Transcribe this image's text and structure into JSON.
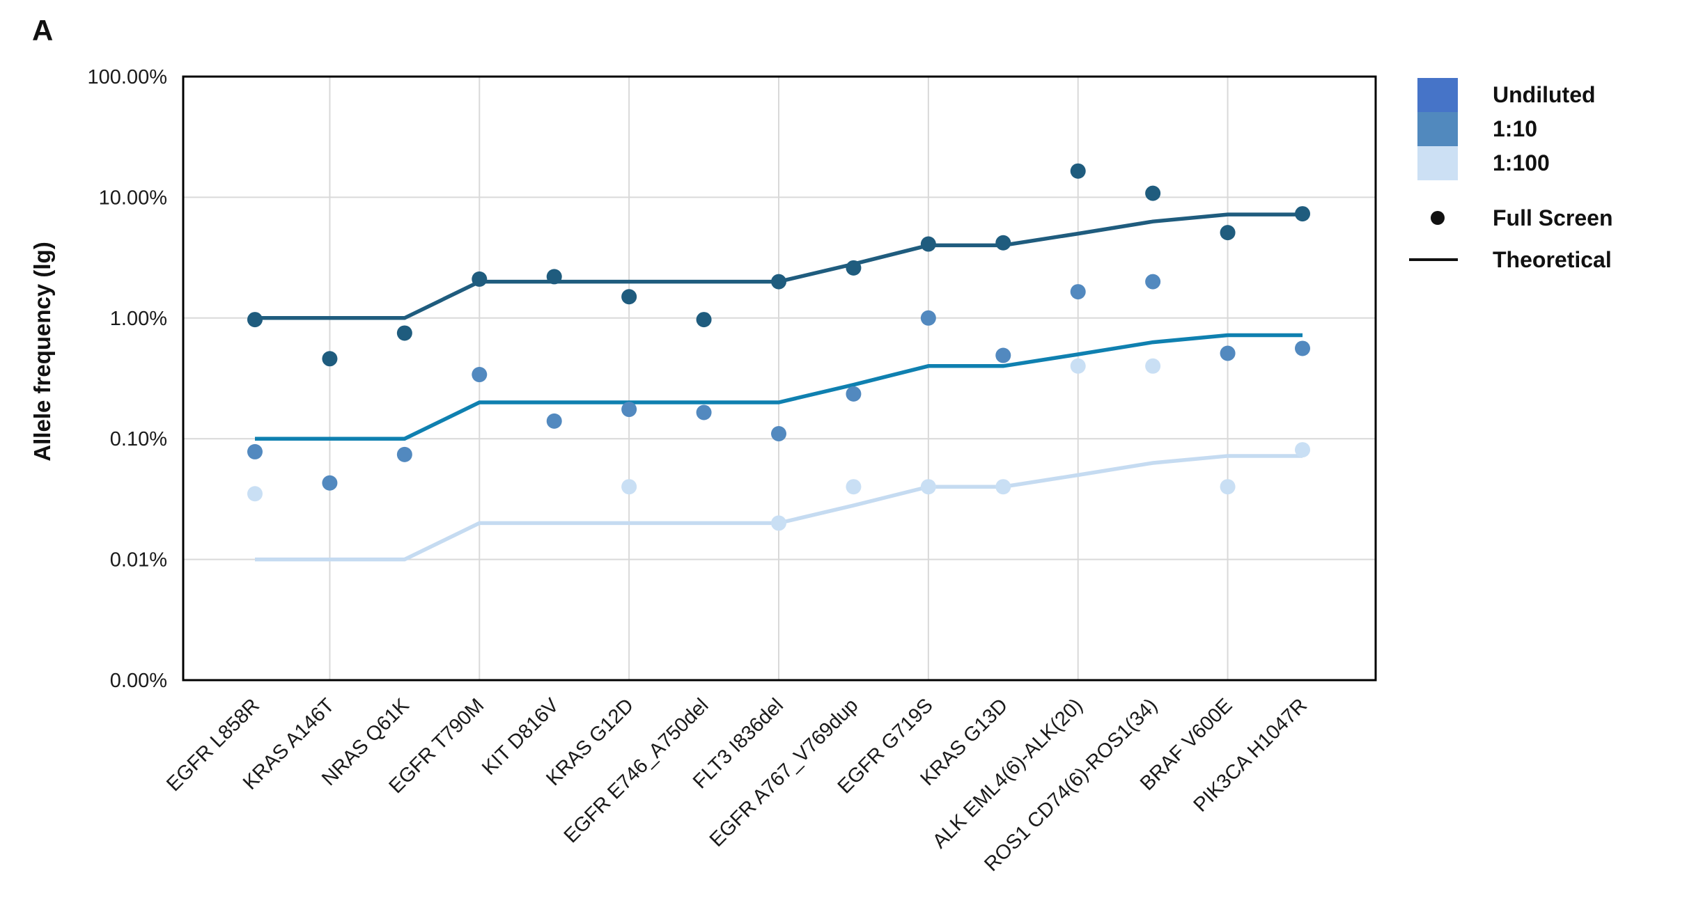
{
  "panel_label": "A",
  "y_axis": {
    "title": "Allele frequency (lg)"
  },
  "legend": {
    "dilutions": [
      {
        "label": "Undiluted",
        "color": "#4674C8"
      },
      {
        "label": "1:10",
        "color": "#5189BE"
      },
      {
        "label": "1:100",
        "color": "#CCE0F4"
      }
    ],
    "markers": [
      {
        "type": "dot",
        "label": "Full Screen"
      },
      {
        "type": "line",
        "label": "Theoretical"
      }
    ]
  },
  "colors": {
    "grid": "#D9D9D9",
    "axis": "#000000",
    "text": "#1A1A1A"
  },
  "chart_data": {
    "type": "scatter",
    "y_scale": "log",
    "ylabel": "Allele frequency (lg)",
    "ylim_percent": [
      0.001,
      100
    ],
    "grid": true,
    "legend_position": "right",
    "x_categories": [
      "EGFR L858R",
      "KRAS A146T",
      "NRAS Q61K",
      "EGFR T790M",
      "KIT D816V",
      "KRAS G12D",
      "EGFR E746_A750del",
      "FLT3 I836del",
      "EGFR A767_V769dup",
      "EGFR G719S",
      "KRAS G13D",
      "ALK EML4(6)-ALK(20)",
      "ROS1 CD74(6)-ROS1(34)",
      "BRAF V600E",
      "PIK3CA H1047R"
    ],
    "y_ticks": [
      {
        "label": "100.00%",
        "value": 100
      },
      {
        "label": "10.00%",
        "value": 10
      },
      {
        "label": "1.00%",
        "value": 1
      },
      {
        "label": "0.10%",
        "value": 0.1
      },
      {
        "label": "0.01%",
        "value": 0.01
      },
      {
        "label": "0.00%",
        "value": 0
      }
    ],
    "series_dots": [
      {
        "name": "Undiluted Full Screen",
        "color": "#1F5C7E",
        "values": [
          0.97,
          0.46,
          0.75,
          2.1,
          2.2,
          1.5,
          0.97,
          2.0,
          2.6,
          4.1,
          4.2,
          16.5,
          10.8,
          5.1,
          7.3
        ]
      },
      {
        "name": "1:10 Full Screen",
        "color": "#5289BF",
        "values": [
          0.078,
          0.043,
          0.074,
          0.34,
          0.14,
          0.175,
          0.165,
          0.11,
          0.235,
          1.0,
          0.49,
          1.65,
          2.0,
          0.51,
          0.56
        ]
      },
      {
        "name": "1:100 Full Screen",
        "color": "#C9DFF4",
        "values": [
          0.035,
          null,
          null,
          null,
          null,
          0.04,
          null,
          0.02,
          0.04,
          0.04,
          0.04,
          0.4,
          0.4,
          0.04,
          0.081
        ]
      }
    ],
    "series_lines": [
      {
        "name": "Undiluted Theoretical",
        "color": "#1F5C7E",
        "values": [
          1,
          1,
          1,
          2,
          2,
          2,
          2,
          2,
          2.8,
          4,
          4,
          5,
          6.3,
          7.2,
          7.2
        ]
      },
      {
        "name": "1:10 Theoretical",
        "color": "#0F80B0",
        "values": [
          0.1,
          0.1,
          0.1,
          0.2,
          0.2,
          0.2,
          0.2,
          0.2,
          0.28,
          0.4,
          0.4,
          0.5,
          0.63,
          0.72,
          0.72
        ]
      },
      {
        "name": "1:100 Theoretical",
        "color": "#C5DBF1",
        "values": [
          0.01,
          0.01,
          0.01,
          0.02,
          0.02,
          0.02,
          0.02,
          0.02,
          0.028,
          0.04,
          0.04,
          0.05,
          0.063,
          0.072,
          0.072
        ]
      }
    ]
  }
}
